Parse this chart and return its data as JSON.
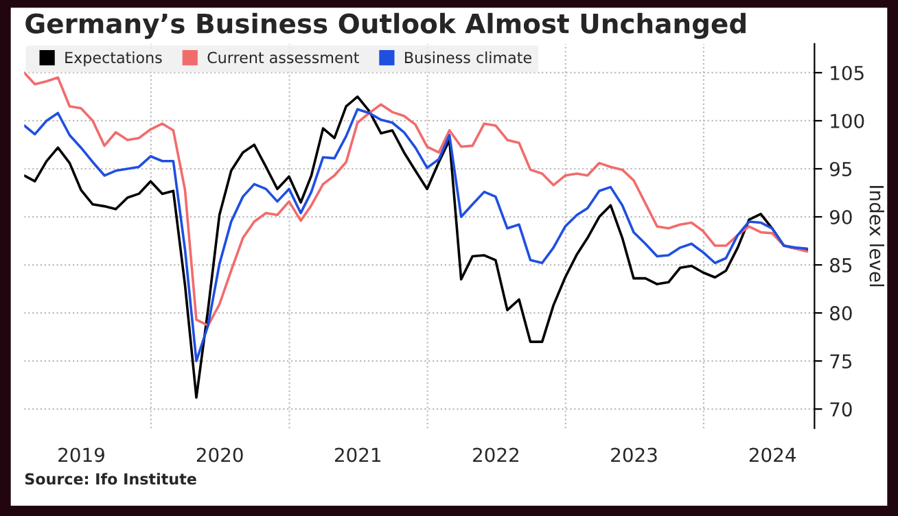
{
  "chart_data": {
    "type": "line",
    "title": "Germany’s Business Outlook Almost Unchanged",
    "ylabel": "Index level",
    "annotations": [
      "Source: Ifo Institute"
    ],
    "x": [
      "2019-01-31",
      "2019-02-28",
      "2019-03-31",
      "2019-04-30",
      "2019-05-31",
      "2019-06-30",
      "2019-07-31",
      "2019-08-31",
      "2019-09-30",
      "2019-10-31",
      "2019-11-30",
      "2019-12-31",
      "2020-01-31",
      "2020-02-29",
      "2020-03-31",
      "2020-04-30",
      "2020-05-31",
      "2020-06-30",
      "2020-07-31",
      "2020-08-31",
      "2020-09-30",
      "2020-10-31",
      "2020-11-30",
      "2020-12-31",
      "2021-01-31",
      "2021-02-28",
      "2021-03-31",
      "2021-04-30",
      "2021-05-31",
      "2021-06-30",
      "2021-07-31",
      "2021-08-31",
      "2021-09-30",
      "2021-10-31",
      "2021-11-30",
      "2021-12-31",
      "2022-01-31",
      "2022-02-28",
      "2022-03-31",
      "2022-04-30",
      "2022-05-31",
      "2022-06-30",
      "2022-07-31",
      "2022-08-31",
      "2022-09-30",
      "2022-10-31",
      "2022-11-30",
      "2022-12-31",
      "2023-01-31",
      "2023-02-28",
      "2023-03-31",
      "2023-04-30",
      "2023-05-31",
      "2023-06-30",
      "2023-07-31",
      "2023-08-31",
      "2023-09-30",
      "2023-10-31",
      "2023-11-30",
      "2023-12-31",
      "2024-01-31",
      "2024-02-29",
      "2024-03-31",
      "2024-04-30",
      "2024-05-31",
      "2024-06-30",
      "2024-07-31",
      "2024-08-31",
      "2024-09-30"
    ],
    "series": [
      {
        "name": "Expectations",
        "color": "#000000",
        "values": [
          94.3,
          93.7,
          95.8,
          97.2,
          95.6,
          92.8,
          91.3,
          91.1,
          90.8,
          92.0,
          92.4,
          93.7,
          92.4,
          92.7,
          82.9,
          71.2,
          80.4,
          90.2,
          94.8,
          96.7,
          97.5,
          95.2,
          92.9,
          94.2,
          91.5,
          94.3,
          99.2,
          98.2,
          101.5,
          102.5,
          101.0,
          98.7,
          99.0,
          96.7,
          94.8,
          92.9,
          95.7,
          98.0,
          83.5,
          85.9,
          86.0,
          85.5,
          80.3,
          81.4,
          77.0,
          77.0,
          80.8,
          83.7,
          86.1,
          87.8,
          90.0,
          91.2,
          87.8,
          83.6,
          83.6,
          83.0,
          83.2,
          84.7,
          84.9,
          84.2,
          83.7,
          84.4,
          86.8,
          89.7,
          90.3,
          88.8,
          87.0,
          86.7,
          86.6
        ]
      },
      {
        "name": "Current assessment",
        "color": "#f26b6b",
        "values": [
          105.0,
          103.8,
          104.1,
          104.5,
          101.5,
          101.3,
          100.0,
          97.4,
          98.8,
          98.0,
          98.2,
          99.1,
          99.7,
          99.0,
          92.8,
          79.3,
          78.7,
          80.9,
          84.4,
          87.8,
          89.5,
          90.4,
          90.2,
          91.6,
          89.6,
          91.2,
          93.4,
          94.3,
          95.7,
          99.8,
          100.8,
          101.7,
          100.9,
          100.5,
          99.6,
          97.3,
          96.7,
          99.0,
          97.3,
          97.4,
          99.7,
          99.5,
          98.0,
          97.7,
          94.9,
          94.5,
          93.3,
          94.3,
          94.5,
          94.3,
          95.6,
          95.2,
          94.9,
          93.8,
          91.4,
          89.0,
          88.8,
          89.2,
          89.4,
          88.5,
          87.0,
          87.0,
          88.1,
          89.0,
          88.4,
          88.3,
          87.0,
          86.7,
          86.4
        ]
      },
      {
        "name": "Business climate",
        "color": "#1f4fe0",
        "values": [
          99.5,
          98.6,
          100.0,
          100.8,
          98.5,
          97.2,
          95.7,
          94.3,
          94.8,
          95.0,
          95.2,
          96.3,
          95.8,
          95.8,
          86.6,
          75.0,
          78.7,
          85.1,
          89.5,
          92.1,
          93.4,
          92.9,
          91.6,
          92.9,
          90.4,
          92.6,
          96.2,
          96.1,
          98.4,
          101.2,
          100.8,
          100.1,
          99.8,
          98.8,
          97.2,
          95.1,
          96.0,
          98.5,
          90.0,
          91.3,
          92.6,
          92.1,
          88.8,
          89.2,
          85.5,
          85.2,
          86.8,
          89.0,
          90.2,
          90.9,
          92.7,
          93.1,
          91.2,
          88.4,
          87.2,
          85.9,
          86.0,
          86.8,
          87.2,
          86.3,
          85.2,
          85.7,
          88.1,
          89.5,
          89.4,
          88.8,
          87.0,
          86.8,
          86.7
        ]
      }
    ],
    "xlim": [
      "2019-01-31",
      "2024-10-20"
    ],
    "xticks": [
      {
        "value": "2019-07-01",
        "label": "2019"
      },
      {
        "value": "2020-01-01",
        "label": null
      },
      {
        "value": "2020-07-01",
        "label": "2020"
      },
      {
        "value": "2021-01-01",
        "label": null
      },
      {
        "value": "2021-07-01",
        "label": "2021"
      },
      {
        "value": "2022-01-01",
        "label": null
      },
      {
        "value": "2022-07-01",
        "label": "2022"
      },
      {
        "value": "2023-01-01",
        "label": null
      },
      {
        "value": "2023-07-01",
        "label": "2023"
      },
      {
        "value": "2024-01-01",
        "label": null
      },
      {
        "value": "2024-07-01",
        "label": "2024"
      }
    ],
    "ylim": [
      68,
      108
    ],
    "yticks": [
      70,
      75,
      80,
      85,
      90,
      95,
      100,
      105
    ],
    "grid": true,
    "legend": "top left"
  }
}
